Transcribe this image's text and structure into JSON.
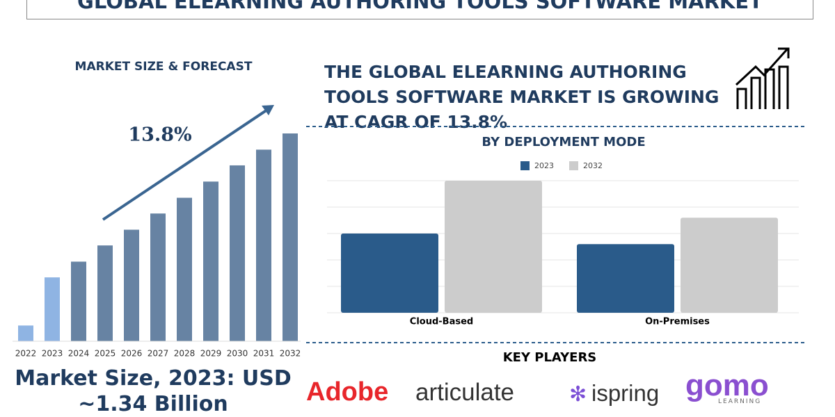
{
  "title": "GLOBAL ELEARNING AUTHORING TOOLS SOFTWARE MARKET",
  "headline": "THE GLOBAL ELEARNING AUTHORING TOOLS SOFTWARE MARKET IS GROWING AT CAGR OF 13.8%",
  "market_size": {
    "line1": "Market Size, 2023: USD",
    "line2": "~1.34 Billion"
  },
  "key_players": {
    "title": "KEY PLAYERS",
    "logos": [
      "Adobe",
      "articulate",
      "ispring",
      "gomo"
    ],
    "gomo_sub": "LEARNING"
  },
  "chart_data": [
    {
      "type": "bar",
      "title": "MARKET SIZE & FORECAST",
      "annotation": "13.8%",
      "categories": [
        "2022",
        "2023",
        "2024",
        "2025",
        "2026",
        "2027",
        "2028",
        "2029",
        "2030",
        "2031",
        "2032"
      ],
      "values": [
        0.33,
        1.34,
        1.67,
        2.01,
        2.34,
        2.68,
        3.01,
        3.35,
        3.69,
        4.02,
        4.36
      ],
      "colors": [
        "#8fb4e3",
        "#8fb4e3",
        "#6783a3",
        "#6783a3",
        "#6783a3",
        "#6783a3",
        "#6783a3",
        "#6783a3",
        "#6783a3",
        "#6783a3",
        "#6783a3"
      ]
    },
    {
      "type": "grouped-bar",
      "title": "BY DEPLOYMENT MODE",
      "categories": [
        "Cloud-Based",
        "On-Premises"
      ],
      "series": [
        {
          "name": "2023",
          "color": "#2a5b8a",
          "values": [
            3.0,
            2.6
          ]
        },
        {
          "name": "2032",
          "color": "#cccccc",
          "values": [
            5.0,
            3.6
          ]
        }
      ],
      "ylim": [
        0,
        5
      ],
      "yticks": [
        0,
        1,
        2,
        3,
        4,
        5
      ],
      "grid": true
    }
  ]
}
